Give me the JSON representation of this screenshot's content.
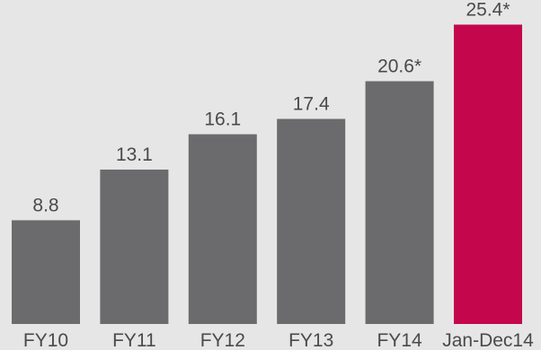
{
  "chart_data": {
    "type": "bar",
    "categories": [
      "FY10",
      "FY11",
      "FY12",
      "FY13",
      "FY14",
      "Jan-Dec14"
    ],
    "values": [
      8.8,
      13.1,
      16.1,
      17.4,
      20.6,
      25.4
    ],
    "value_labels": [
      "8.8",
      "13.1",
      "16.1",
      "17.4",
      "20.6*",
      "25.4*"
    ],
    "highlight_index": 5,
    "colors": {
      "bar": "#6b6b6d",
      "highlight": "#c4074c",
      "text": "#4a4a4c",
      "background": "#e6e6e6"
    },
    "title": "",
    "xlabel": "",
    "ylabel": "",
    "ylim": [
      0,
      26.5
    ],
    "grid": false,
    "legend": "none"
  }
}
